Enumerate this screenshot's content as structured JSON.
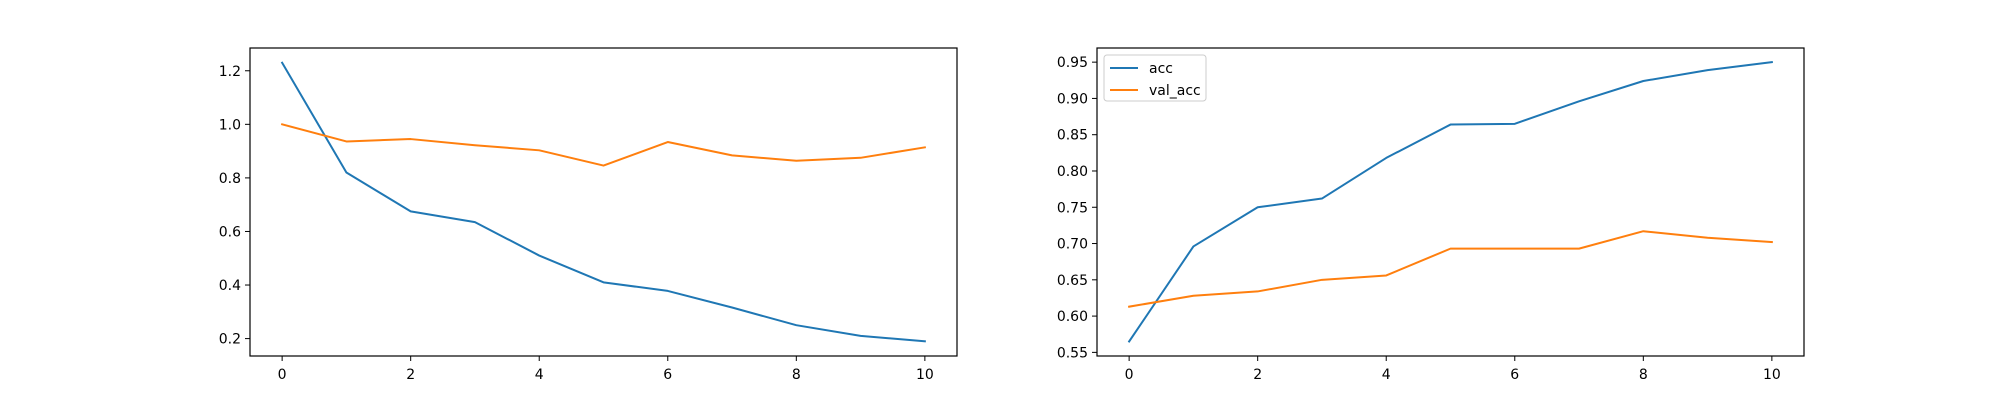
{
  "chart_data": [
    {
      "type": "line",
      "title": "",
      "xlabel": "",
      "ylabel": "",
      "x": [
        0,
        1,
        2,
        3,
        4,
        5,
        6,
        7,
        8,
        9,
        10
      ],
      "xlim": [
        -0.5,
        10.5
      ],
      "ylim": [
        0.135,
        1.285
      ],
      "xticks": [
        0,
        2,
        4,
        6,
        8,
        10
      ],
      "xtick_labels": [
        "0",
        "2",
        "4",
        "6",
        "8",
        "10"
      ],
      "yticks": [
        0.2,
        0.4,
        0.6,
        0.8,
        1.0,
        1.2
      ],
      "ytick_labels": [
        "0.2",
        "0.4",
        "0.6",
        "0.8",
        "1.0",
        "1.2"
      ],
      "grid": false,
      "legend": null,
      "series": [
        {
          "color": "#1f77b4",
          "values": [
            1.23,
            0.82,
            0.675,
            0.635,
            0.51,
            0.41,
            0.378,
            0.316,
            0.25,
            0.21,
            0.19
          ]
        },
        {
          "color": "#ff7f0e",
          "values": [
            1.0,
            0.936,
            0.945,
            0.922,
            0.903,
            0.846,
            0.934,
            0.884,
            0.864,
            0.875,
            0.914
          ]
        }
      ]
    },
    {
      "type": "line",
      "title": "",
      "xlabel": "",
      "ylabel": "",
      "x": [
        0,
        1,
        2,
        3,
        4,
        5,
        6,
        7,
        8,
        9,
        10
      ],
      "xlim": [
        -0.5,
        10.5
      ],
      "ylim": [
        0.545,
        0.9695
      ],
      "xticks": [
        0,
        2,
        4,
        6,
        8,
        10
      ],
      "xtick_labels": [
        "0",
        "2",
        "4",
        "6",
        "8",
        "10"
      ],
      "yticks": [
        0.55,
        0.6,
        0.65,
        0.7,
        0.75,
        0.8,
        0.85,
        0.9,
        0.95
      ],
      "ytick_labels": [
        "0.55",
        "0.60",
        "0.65",
        "0.70",
        "0.75",
        "0.80",
        "0.85",
        "0.90",
        "0.95"
      ],
      "grid": false,
      "legend": "upper-left",
      "series": [
        {
          "name": "acc",
          "color": "#1f77b4",
          "values": [
            0.565,
            0.696,
            0.75,
            0.762,
            0.818,
            0.864,
            0.865,
            0.896,
            0.924,
            0.939,
            0.95
          ]
        },
        {
          "name": "val_acc",
          "color": "#ff7f0e",
          "values": [
            0.613,
            0.628,
            0.634,
            0.65,
            0.656,
            0.693,
            0.693,
            0.693,
            0.717,
            0.708,
            0.702
          ]
        }
      ]
    }
  ]
}
